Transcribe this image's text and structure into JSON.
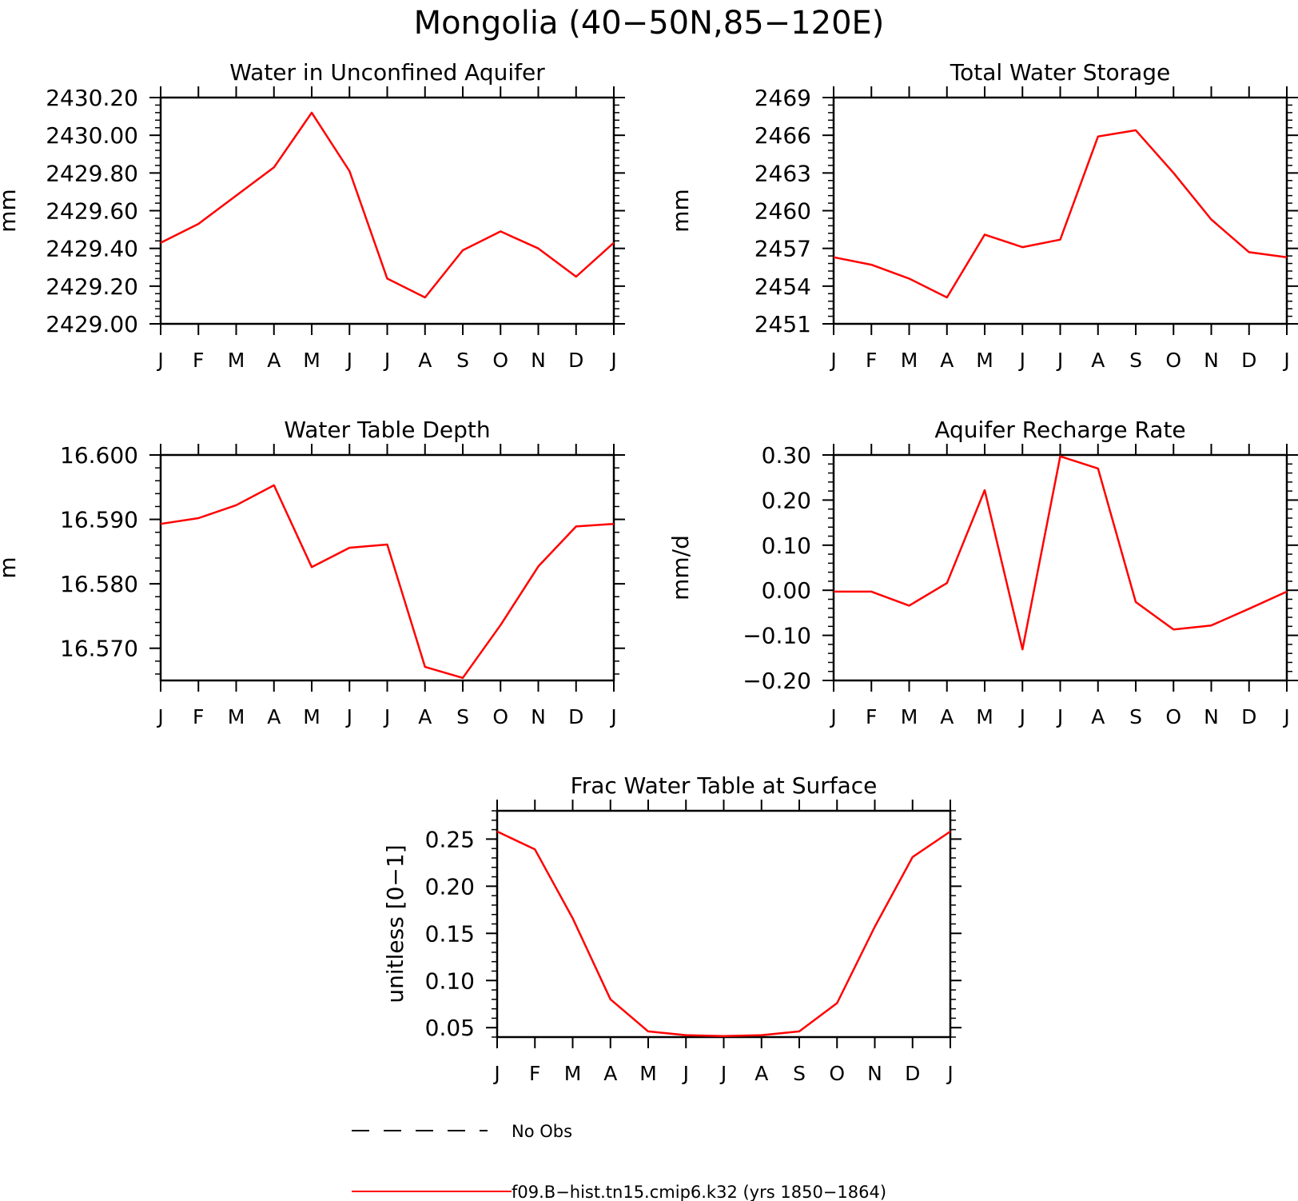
{
  "figure": {
    "title": "Mongolia (40−50N,85−120E)",
    "legend": {
      "entries": [
        {
          "label": "No Obs",
          "style": "dashed",
          "color": "#000000"
        },
        {
          "label": "f09.B−hist.tn15.cmip6.k32 (yrs 1850−1864)",
          "style": "solid",
          "color": "#ff0000"
        }
      ]
    }
  },
  "chart_data": [
    {
      "type": "line",
      "title": "Water in Unconfined Aquifer",
      "ylabel": "mm",
      "xlabel": "",
      "categories": [
        "J",
        "F",
        "M",
        "A",
        "M",
        "J",
        "J",
        "A",
        "S",
        "O",
        "N",
        "D",
        "J"
      ],
      "ylim": [
        2429.0,
        2430.2
      ],
      "yticks": [
        "2429.00",
        "2429.20",
        "2429.40",
        "2429.60",
        "2429.80",
        "2430.00",
        "2430.20"
      ],
      "series": [
        {
          "color": "#ff0000",
          "values": [
            2429.43,
            2429.53,
            2429.68,
            2429.83,
            2430.12,
            2429.81,
            2429.24,
            2429.14,
            2429.39,
            2429.49,
            2429.4,
            2429.25,
            2429.43
          ]
        }
      ]
    },
    {
      "type": "line",
      "title": "Total Water Storage",
      "ylabel": "mm",
      "xlabel": "",
      "categories": [
        "J",
        "F",
        "M",
        "A",
        "M",
        "J",
        "J",
        "A",
        "S",
        "O",
        "N",
        "D",
        "J"
      ],
      "ylim": [
        2451,
        2469
      ],
      "yticks": [
        "2451",
        "2454",
        "2457",
        "2460",
        "2463",
        "2466",
        "2469"
      ],
      "series": [
        {
          "color": "#ff0000",
          "values": [
            2456.3,
            2455.7,
            2454.6,
            2453.1,
            2458.1,
            2457.1,
            2457.7,
            2465.9,
            2466.4,
            2463.0,
            2459.3,
            2456.7,
            2456.3
          ]
        }
      ]
    },
    {
      "type": "line",
      "title": "Water Table Depth",
      "ylabel": "m",
      "xlabel": "",
      "categories": [
        "J",
        "F",
        "M",
        "A",
        "M",
        "J",
        "J",
        "A",
        "S",
        "O",
        "N",
        "D",
        "J"
      ],
      "ylim": [
        16.565,
        16.6
      ],
      "yticks": [
        "16.570",
        "16.580",
        "16.590",
        "16.600"
      ],
      "series": [
        {
          "color": "#ff0000",
          "values": [
            16.5893,
            16.5902,
            16.5922,
            16.5953,
            16.5826,
            16.5856,
            16.5861,
            16.5671,
            16.5654,
            16.5736,
            16.5827,
            16.5889,
            16.5893
          ]
        }
      ]
    },
    {
      "type": "line",
      "title": "Aquifer Recharge Rate",
      "ylabel": "mm/d",
      "xlabel": "",
      "categories": [
        "J",
        "F",
        "M",
        "A",
        "M",
        "J",
        "J",
        "A",
        "S",
        "O",
        "N",
        "D",
        "J"
      ],
      "ylim": [
        -0.2,
        0.3
      ],
      "yticks": [
        "−0.20",
        "−0.10",
        "0.00",
        "0.10",
        "0.20",
        "0.30"
      ],
      "series": [
        {
          "color": "#ff0000",
          "values": [
            -0.003,
            -0.003,
            -0.034,
            0.016,
            0.222,
            -0.131,
            0.297,
            0.27,
            -0.026,
            -0.087,
            -0.078,
            -0.041,
            -0.003
          ]
        }
      ]
    },
    {
      "type": "line",
      "title": "Frac Water Table at Surface",
      "ylabel": "unitless [0−1]",
      "xlabel": "",
      "categories": [
        "J",
        "F",
        "M",
        "A",
        "M",
        "J",
        "J",
        "A",
        "S",
        "O",
        "N",
        "D",
        "J"
      ],
      "ylim": [
        0.04,
        0.28
      ],
      "yticks": [
        "0.05",
        "0.10",
        "0.15",
        "0.20",
        "0.25"
      ],
      "series": [
        {
          "color": "#ff0000",
          "values": [
            0.258,
            0.239,
            0.166,
            0.08,
            0.046,
            0.042,
            0.041,
            0.042,
            0.046,
            0.076,
            0.157,
            0.231,
            0.258
          ]
        }
      ]
    }
  ]
}
